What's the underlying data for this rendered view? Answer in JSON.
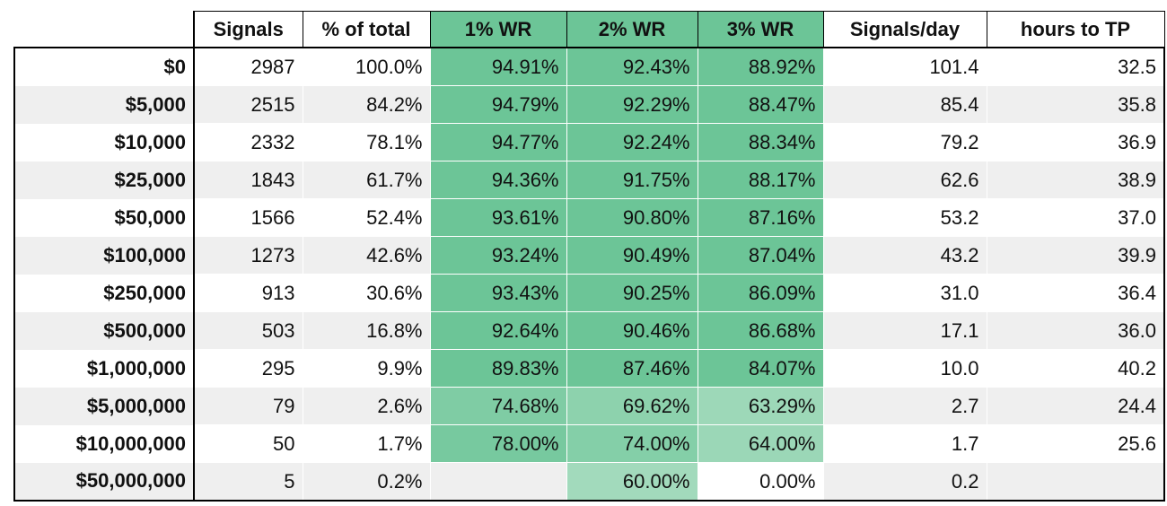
{
  "table": {
    "header": [
      "Signals",
      "% of total",
      "1% WR",
      "2% WR",
      "3% WR",
      "Signals/day",
      "hours to TP"
    ],
    "header_colors": [
      "#ffffff",
      "#ffffff",
      "#6cc597",
      "#6cc597",
      "#6cc597",
      "#ffffff",
      "#ffffff"
    ],
    "row_colors": [
      "#ffffff",
      "#efefef"
    ],
    "rows": [
      {
        "label": "$0",
        "cells": [
          "2987",
          "100.0%",
          "94.91%",
          "92.43%",
          "88.92%",
          "101.4",
          "32.5"
        ],
        "colors": [
          "#6cc597",
          "#6cc597",
          "#6cc597"
        ]
      },
      {
        "label": "$5,000",
        "cells": [
          "2515",
          "84.2%",
          "94.79%",
          "92.29%",
          "88.47%",
          "85.4",
          "35.8"
        ],
        "colors": [
          "#6cc597",
          "#6cc597",
          "#6cc597"
        ]
      },
      {
        "label": "$10,000",
        "cells": [
          "2332",
          "78.1%",
          "94.77%",
          "92.24%",
          "88.34%",
          "79.2",
          "36.9"
        ],
        "colors": [
          "#6cc597",
          "#6cc597",
          "#6cc597"
        ]
      },
      {
        "label": "$25,000",
        "cells": [
          "1843",
          "61.7%",
          "94.36%",
          "91.75%",
          "88.17%",
          "62.6",
          "38.9"
        ],
        "colors": [
          "#6cc597",
          "#6cc597",
          "#6cc597"
        ]
      },
      {
        "label": "$50,000",
        "cells": [
          "1566",
          "52.4%",
          "93.61%",
          "90.80%",
          "87.16%",
          "53.2",
          "37.0"
        ],
        "colors": [
          "#6cc597",
          "#6cc597",
          "#6cc597"
        ]
      },
      {
        "label": "$100,000",
        "cells": [
          "1273",
          "42.6%",
          "93.24%",
          "90.49%",
          "87.04%",
          "43.2",
          "39.9"
        ],
        "colors": [
          "#6cc597",
          "#6cc597",
          "#6cc597"
        ]
      },
      {
        "label": "$250,000",
        "cells": [
          "913",
          "30.6%",
          "93.43%",
          "90.25%",
          "86.09%",
          "31.0",
          "36.4"
        ],
        "colors": [
          "#6cc597",
          "#6cc597",
          "#6cc597"
        ]
      },
      {
        "label": "$500,000",
        "cells": [
          "503",
          "16.8%",
          "92.64%",
          "90.46%",
          "86.68%",
          "17.1",
          "36.0"
        ],
        "colors": [
          "#6cc597",
          "#6cc597",
          "#6cc597"
        ]
      },
      {
        "label": "$1,000,000",
        "cells": [
          "295",
          "9.9%",
          "89.83%",
          "87.46%",
          "84.07%",
          "10.0",
          "40.2"
        ],
        "colors": [
          "#6cc597",
          "#6cc597",
          "#6cc597"
        ]
      },
      {
        "label": "$5,000,000",
        "cells": [
          "79",
          "2.6%",
          "74.68%",
          "69.62%",
          "63.29%",
          "2.7",
          "24.4"
        ],
        "colors": [
          "#7fcca4",
          "#8dd2ad",
          "#9dd8b8"
        ]
      },
      {
        "label": "$10,000,000",
        "cells": [
          "50",
          "1.7%",
          "78.00%",
          "74.00%",
          "64.00%",
          "1.7",
          "25.6"
        ],
        "colors": [
          "#77c99f",
          "#84cfa8",
          "#9bd7b7"
        ]
      },
      {
        "label": "$50,000,000",
        "cells": [
          "5",
          "0.2%",
          null,
          "60.00%",
          "0.00%",
          "0.2",
          null
        ],
        "colors": [
          null,
          "#a2dabc",
          "#ffffff"
        ]
      }
    ]
  }
}
